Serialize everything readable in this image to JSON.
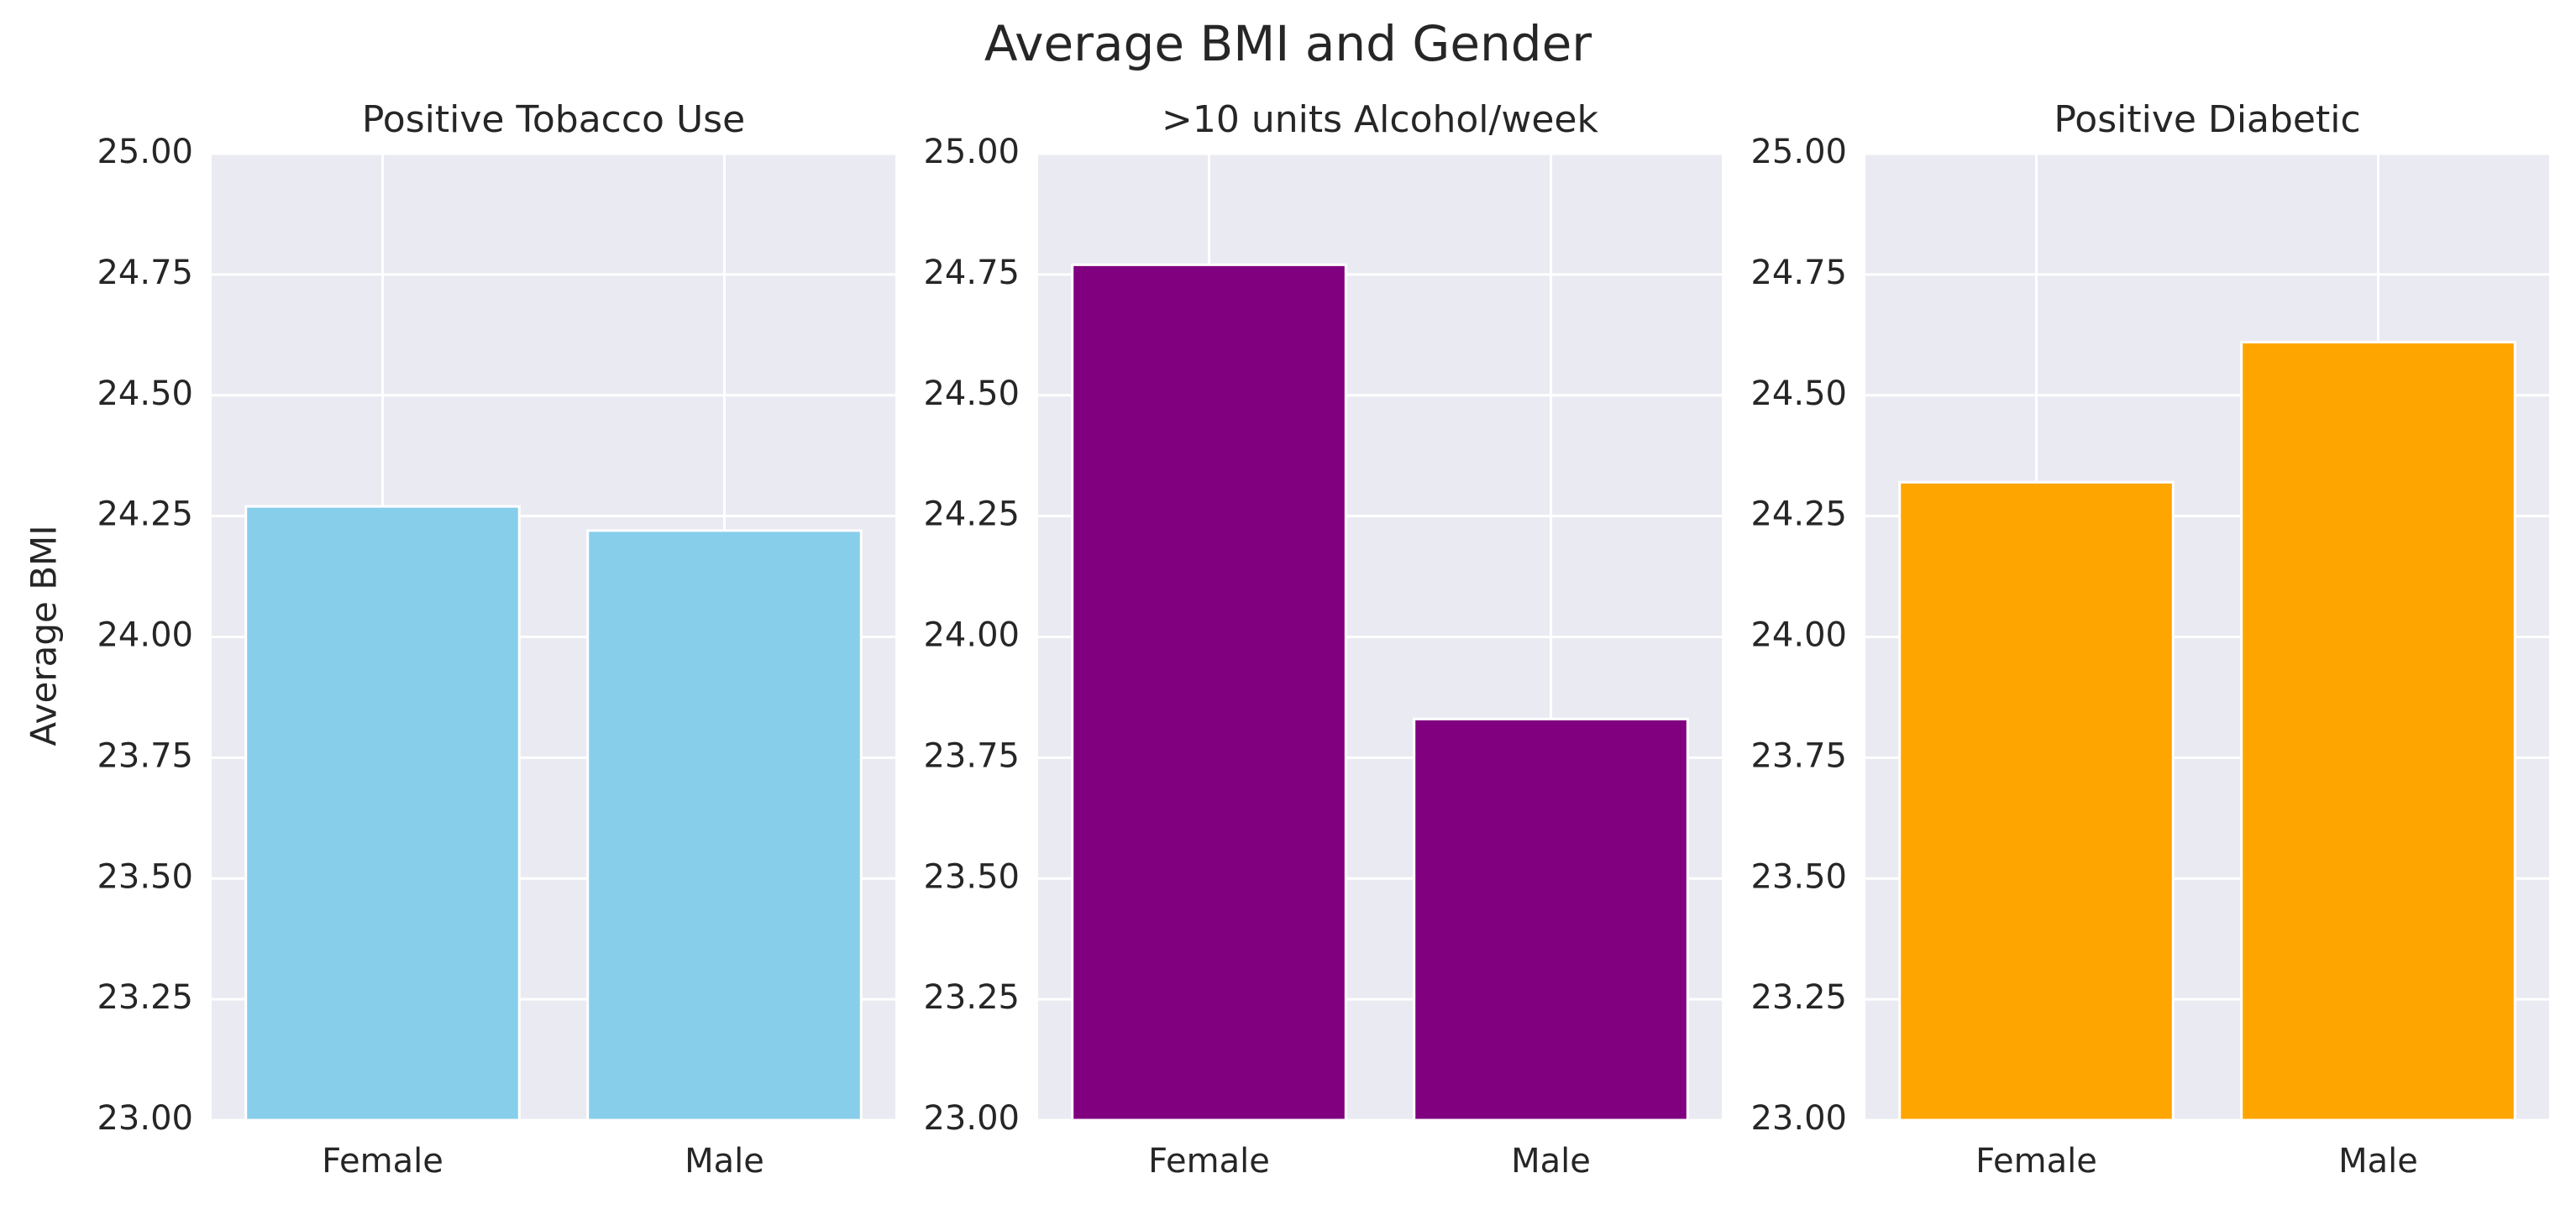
{
  "figure": {
    "title": "Average BMI and Gender",
    "ylabel": "Average BMI",
    "background": "#eaeaf2",
    "grid_color": "#ffffff"
  },
  "chart_data": [
    {
      "type": "bar",
      "title": "Positive Tobacco Use",
      "categories": [
        "Female",
        "Male"
      ],
      "values": [
        24.27,
        24.22
      ],
      "color": "#87ceeb",
      "ylabel": "Average BMI",
      "ylim": [
        23.0,
        25.0
      ],
      "yticks": [
        "23.00",
        "23.25",
        "23.50",
        "23.75",
        "24.00",
        "24.25",
        "24.50",
        "24.75",
        "25.00"
      ],
      "grid": true
    },
    {
      "type": "bar",
      "title": ">10 units Alcohol/week",
      "categories": [
        "Female",
        "Male"
      ],
      "values": [
        24.77,
        23.83
      ],
      "color": "#800080",
      "ylim": [
        23.0,
        25.0
      ],
      "yticks": [
        "23.00",
        "23.25",
        "23.50",
        "23.75",
        "24.00",
        "24.25",
        "24.50",
        "24.75",
        "25.00"
      ],
      "grid": true
    },
    {
      "type": "bar",
      "title": "Positive Diabetic",
      "categories": [
        "Female",
        "Male"
      ],
      "values": [
        24.32,
        24.61
      ],
      "color": "#ffa500",
      "ylim": [
        23.0,
        25.0
      ],
      "yticks": [
        "23.00",
        "23.25",
        "23.50",
        "23.75",
        "24.00",
        "24.25",
        "24.50",
        "24.75",
        "25.00"
      ],
      "grid": true
    }
  ]
}
